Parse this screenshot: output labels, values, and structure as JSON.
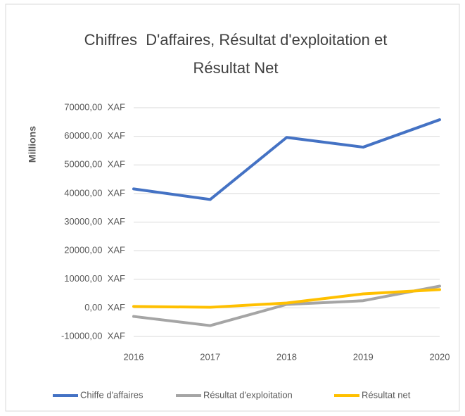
{
  "chart_data": {
    "type": "line",
    "title": [
      "Chiffres  D'affaires, Résultat d'exploitation et",
      "Résultat Net"
    ],
    "y_label": "Millions",
    "categories": [
      "2016",
      "2017",
      "2018",
      "2019",
      "2020"
    ],
    "series": [
      {
        "name": "Chiffe d'affaires",
        "color": "#4472c4",
        "values": [
          41600,
          37900,
          59600,
          56200,
          65800
        ]
      },
      {
        "name": "Résultat d'exploitation",
        "color": "#a5a5a5",
        "values": [
          -3000,
          -6200,
          1200,
          2500,
          7600
        ]
      },
      {
        "name": "Résultat net",
        "color": "#ffc000",
        "values": [
          500,
          200,
          1700,
          4900,
          6400
        ]
      }
    ],
    "ylim": [
      -10000,
      70000
    ],
    "yticks": [
      {
        "value": -10000,
        "label": "-10000,00  XAF"
      },
      {
        "value": 0,
        "label": "0,00  XAF"
      },
      {
        "value": 10000,
        "label": "10000,00  XAF"
      },
      {
        "value": 20000,
        "label": "20000,00  XAF"
      },
      {
        "value": 30000,
        "label": "30000,00  XAF"
      },
      {
        "value": 40000,
        "label": "40000,00  XAF"
      },
      {
        "value": 50000,
        "label": "50000,00  XAF"
      },
      {
        "value": 60000,
        "label": "60000,00  XAF"
      },
      {
        "value": 70000,
        "label": "70000,00  XAF"
      }
    ],
    "grid": true,
    "legend": "bottom"
  }
}
